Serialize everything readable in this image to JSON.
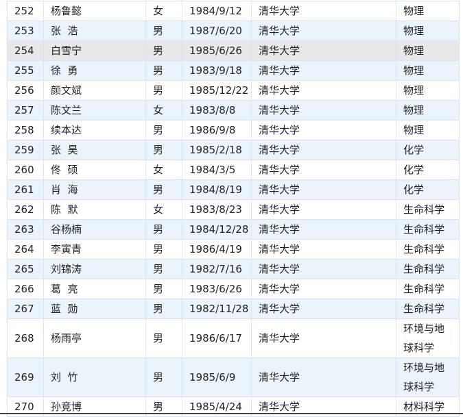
{
  "rows": [
    {
      "id": "252",
      "name": "杨鲁懿",
      "gender": "女",
      "birth": "1984/9/12",
      "school": "清华大学",
      "major": "物理"
    },
    {
      "id": "253",
      "name": "张  浩",
      "gender": "男",
      "birth": "1987/6/20",
      "school": "清华大学",
      "major": "物理"
    },
    {
      "id": "254",
      "name": "白雪宁",
      "gender": "男",
      "birth": "1985/6/26",
      "school": "清华大学",
      "major": "物理"
    },
    {
      "id": "255",
      "name": "徐  勇",
      "gender": "男",
      "birth": "1983/9/18",
      "school": "清华大学",
      "major": "物理"
    },
    {
      "id": "256",
      "name": "颜文斌",
      "gender": "男",
      "birth": "1985/12/22",
      "school": "清华大学",
      "major": "物理"
    },
    {
      "id": "257",
      "name": "陈文兰",
      "gender": "女",
      "birth": "1983/8/8",
      "school": "清华大学",
      "major": "物理"
    },
    {
      "id": "258",
      "name": "续本达",
      "gender": "男",
      "birth": "1986/9/8",
      "school": "清华大学",
      "major": "物理"
    },
    {
      "id": "259",
      "name": "张  昊",
      "gender": "男",
      "birth": "1985/2/18",
      "school": "清华大学",
      "major": "化学"
    },
    {
      "id": "260",
      "name": "佟  硕",
      "gender": "女",
      "birth": "1984/3/5",
      "school": "清华大学",
      "major": "化学"
    },
    {
      "id": "261",
      "name": "肖  海",
      "gender": "男",
      "birth": "1984/8/19",
      "school": "清华大学",
      "major": "化学"
    },
    {
      "id": "262",
      "name": "陈  默",
      "gender": "女",
      "birth": "1983/8/23",
      "school": "清华大学",
      "major": "生命科学"
    },
    {
      "id": "263",
      "name": "谷杨楠",
      "gender": "男",
      "birth": "1984/12/28",
      "school": "清华大学",
      "major": "生命科学"
    },
    {
      "id": "264",
      "name": "李寅青",
      "gender": "男",
      "birth": "1986/4/19",
      "school": "清华大学",
      "major": "生命科学"
    },
    {
      "id": "265",
      "name": "刘锦涛",
      "gender": "男",
      "birth": "1982/7/16",
      "school": "清华大学",
      "major": "生命科学"
    },
    {
      "id": "266",
      "name": "葛  亮",
      "gender": "男",
      "birth": "1983/6/26",
      "school": "清华大学",
      "major": "生命科学"
    },
    {
      "id": "267",
      "name": "蓝  勋",
      "gender": "男",
      "birth": "1982/11/28",
      "school": "清华大学",
      "major": "生命科学"
    },
    {
      "id": "268",
      "name": "杨雨亭",
      "gender": "男",
      "birth": "1986/6/17",
      "school": "清华大学",
      "major": "环境与地球科学"
    },
    {
      "id": "269",
      "name": "刘  竹",
      "gender": "男",
      "birth": "1985/6/9",
      "school": "清华大学",
      "major": "环境与地球科学"
    },
    {
      "id": "270",
      "name": "孙竞博",
      "gender": "男",
      "birth": "1985/4/24",
      "school": "清华大学",
      "major": "材料科学"
    }
  ],
  "hovered_row": "254",
  "colors": {
    "stripe": "#ebf3fb",
    "hover": "#e8e8e8",
    "border": "#d5e5f4"
  }
}
